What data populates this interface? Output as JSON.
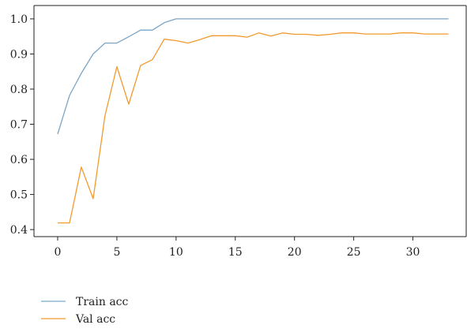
{
  "chart_data": {
    "type": "line",
    "xlim": [
      -2,
      34.5
    ],
    "ylim": [
      0.38,
      1.038
    ],
    "x_ticks": [
      0,
      5,
      10,
      15,
      20,
      25,
      30
    ],
    "y_ticks": [
      0.4,
      0.5,
      0.6,
      0.7,
      0.8,
      0.9,
      1.0
    ],
    "x_tick_labels": [
      "0",
      "5",
      "10",
      "15",
      "20",
      "25",
      "30"
    ],
    "y_tick_labels": [
      "0.4",
      "0.5",
      "0.6",
      "0.7",
      "0.8",
      "0.9",
      "1.0"
    ],
    "grid": false,
    "legend_position": "bottom-left, below the plot",
    "x": [
      0,
      1,
      2,
      3,
      4,
      5,
      6,
      7,
      8,
      9,
      10,
      11,
      12,
      13,
      14,
      15,
      16,
      17,
      18,
      19,
      20,
      21,
      22,
      23,
      24,
      25,
      26,
      27,
      28,
      29,
      30,
      31,
      32,
      33
    ],
    "series": [
      {
        "name": "Train acc",
        "color": "#7aa6c8",
        "values": [
          0.672,
          0.782,
          0.845,
          0.9,
          0.931,
          0.931,
          0.949,
          0.968,
          0.968,
          0.989,
          1.0,
          1.0,
          1.0,
          1.0,
          1.0,
          1.0,
          1.0,
          1.0,
          1.0,
          1.0,
          1.0,
          1.0,
          1.0,
          1.0,
          1.0,
          1.0,
          1.0,
          1.0,
          1.0,
          1.0,
          1.0,
          1.0,
          1.0,
          1.0
        ]
      },
      {
        "name": "Val acc",
        "color": "#f39a2e",
        "values": [
          0.419,
          0.419,
          0.578,
          0.488,
          0.725,
          0.864,
          0.757,
          0.867,
          0.884,
          0.942,
          0.938,
          0.931,
          0.941,
          0.952,
          0.952,
          0.952,
          0.948,
          0.96,
          0.951,
          0.96,
          0.956,
          0.956,
          0.953,
          0.956,
          0.96,
          0.96,
          0.957,
          0.957,
          0.957,
          0.96,
          0.96,
          0.957,
          0.957,
          0.957
        ]
      }
    ]
  }
}
